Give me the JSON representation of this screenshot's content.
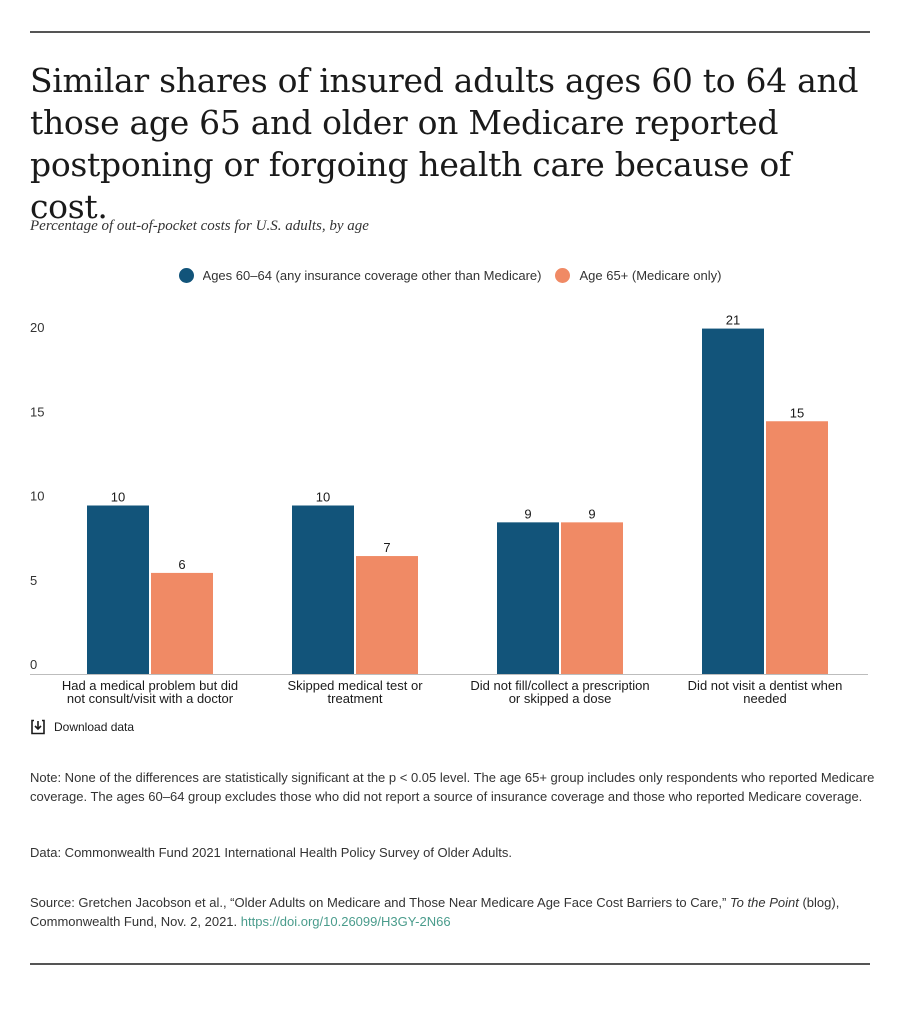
{
  "title": "Similar shares of insured adults ages 60 to 64 and those age 65 and older on Medicare reported postponing or forgoing health care because of cost.",
  "subtitle": "Percentage of out-of-pocket costs for U.S. adults, by age",
  "legend": [
    {
      "label": "Ages 60–64 (any insurance coverage other than Medicare)",
      "color": "#12547a"
    },
    {
      "label": "Age 65+ (Medicare only)",
      "color": "#f08a65"
    }
  ],
  "chart_data": {
    "type": "bar",
    "categories": [
      [
        "Had a medical problem but did",
        "not consult/visit with a doctor"
      ],
      [
        "Skipped medical test or",
        "treatment"
      ],
      [
        "Did not fill/collect a prescription",
        "or skipped a dose"
      ],
      [
        "Did not visit a dentist when",
        "needed"
      ]
    ],
    "series": [
      {
        "name": "Ages 60–64 (any insurance coverage other than Medicare)",
        "values": [
          10,
          10,
          9,
          21
        ],
        "color": "#12547a"
      },
      {
        "name": "Age 65+ (Medicare only)",
        "values": [
          6,
          7,
          9,
          15
        ],
        "color": "#f08a65"
      }
    ],
    "y_ticks": [
      0,
      5,
      10,
      15,
      20
    ],
    "ylim": [
      0,
      20.5
    ],
    "grid": false,
    "legend_position": "top-center"
  },
  "download_label": "Download data",
  "note": "Note: None of the differences are statistically significant at the p < 0.05 level. The age 65+ group includes only respondents who reported Medicare coverage. The ages 60–64 group excludes those who did not report a source of insurance coverage and those who reported Medicare coverage.",
  "data_source": "Data: Commonwealth Fund 2021 International Health Policy Survey of Older Adults.",
  "source": {
    "prefix": "Source: Gretchen Jacobson et al., “Older Adults on Medicare and Those Near Medicare Age Face Cost Barriers to Care,” ",
    "italic": "To the Point",
    "suffix": " (blog), Commonwealth Fund, Nov. 2, 2021. ",
    "link": "https://doi.org/10.26099/H3GY-2N66"
  }
}
